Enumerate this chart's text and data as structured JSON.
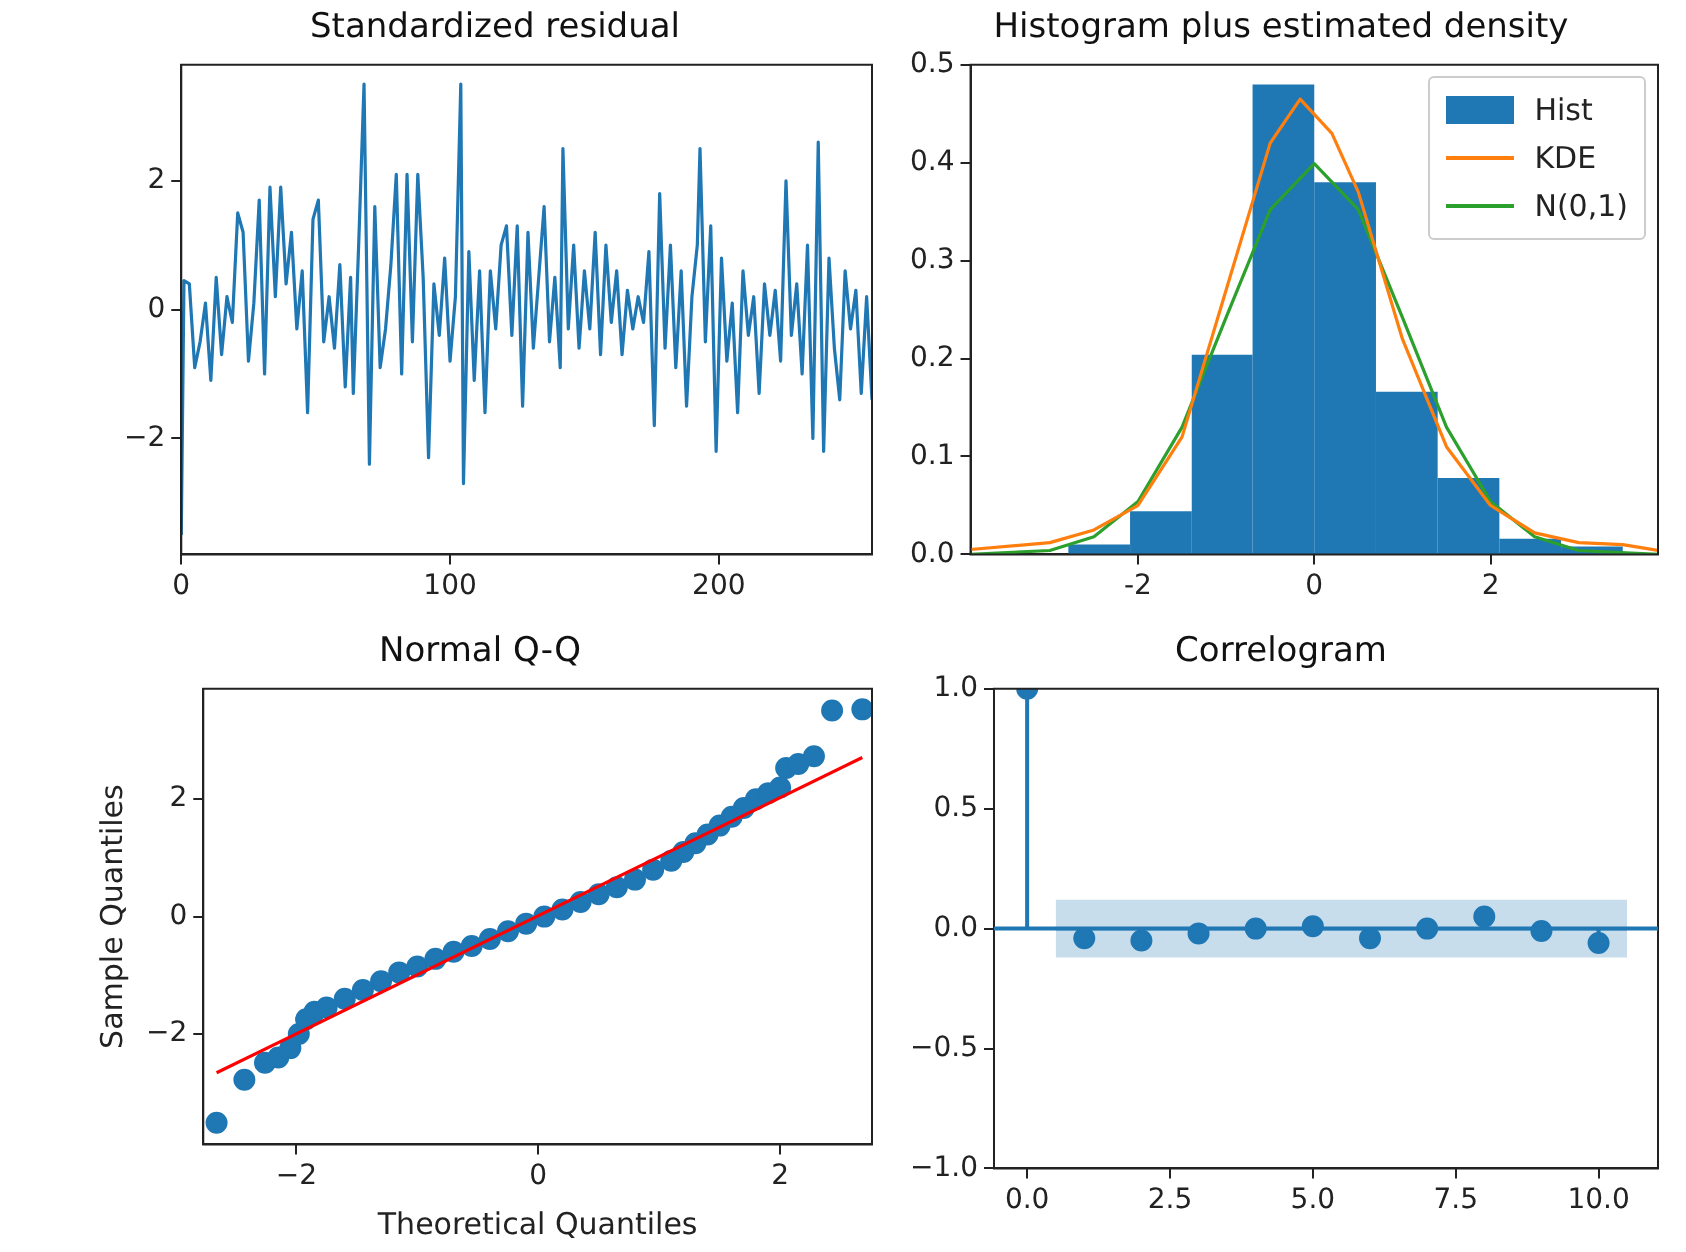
{
  "chart_data": [
    {
      "type": "line",
      "title": "Standardized residual",
      "xlim": [
        0,
        257
      ],
      "xticks": [
        0,
        100,
        200
      ],
      "ylim": [
        -3.8,
        3.8
      ],
      "yticks": [
        {
          "value": -2,
          "label": "−2"
        },
        0,
        2
      ],
      "x": [
        0,
        1,
        3,
        5,
        7,
        9,
        11,
        13,
        15,
        17,
        19,
        21,
        23,
        25,
        27,
        29,
        31,
        33,
        35,
        37,
        39,
        41,
        43,
        45,
        47,
        49,
        51,
        53,
        55,
        57,
        59,
        61,
        63,
        64,
        66,
        68,
        70,
        72,
        74,
        76,
        78,
        80,
        82,
        84,
        86,
        88,
        90,
        92,
        94,
        96,
        98,
        100,
        102,
        104,
        105,
        107,
        109,
        111,
        113,
        115,
        117,
        119,
        121,
        123,
        125,
        127,
        129,
        131,
        133,
        135,
        137,
        139,
        141,
        142,
        144,
        146,
        148,
        150,
        152,
        154,
        156,
        158,
        160,
        162,
        164,
        166,
        168,
        170,
        172,
        174,
        176,
        178,
        180,
        182,
        184,
        186,
        188,
        190,
        192,
        193,
        195,
        197,
        199,
        201,
        203,
        205,
        207,
        209,
        211,
        213,
        215,
        217,
        219,
        221,
        223,
        225,
        227,
        229,
        231,
        233,
        235,
        237,
        239,
        241,
        243,
        245,
        247,
        249,
        251,
        253,
        255,
        257
      ],
      "series": [
        {
          "color": "#1f77b4",
          "values": [
            -3.5,
            0.45,
            0.4,
            -0.9,
            -0.5,
            0.1,
            -1.1,
            0.5,
            -0.7,
            0.2,
            -0.2,
            1.5,
            1.2,
            -0.8,
            0.1,
            1.7,
            -1.0,
            1.9,
            0.2,
            1.9,
            0.4,
            1.2,
            -0.3,
            0.6,
            -1.6,
            1.4,
            1.7,
            -0.5,
            0.2,
            -0.6,
            0.7,
            -1.2,
            0.5,
            -1.3,
            1.0,
            3.5,
            -2.4,
            1.6,
            -0.9,
            -0.3,
            0.7,
            2.1,
            -1.0,
            2.1,
            -0.5,
            2.1,
            0.5,
            -2.3,
            0.4,
            -0.4,
            0.8,
            -0.8,
            0.2,
            3.5,
            -2.7,
            0.9,
            -1.1,
            0.6,
            -1.6,
            0.6,
            -0.3,
            1.0,
            1.3,
            -0.4,
            1.3,
            -1.5,
            1.2,
            -0.6,
            0.5,
            1.6,
            -0.5,
            0.5,
            -0.9,
            2.5,
            -0.3,
            1.0,
            -0.6,
            0.6,
            -0.3,
            1.2,
            -0.7,
            1.0,
            -0.2,
            0.6,
            -0.7,
            0.3,
            -0.3,
            0.2,
            -0.2,
            0.9,
            -1.8,
            1.8,
            -0.6,
            1.0,
            -0.9,
            0.6,
            -1.5,
            0.2,
            1.0,
            2.5,
            -0.5,
            1.3,
            -2.2,
            0.8,
            -0.8,
            0.1,
            -1.6,
            0.6,
            -0.4,
            0.2,
            -1.3,
            0.4,
            -0.4,
            0.3,
            -0.8,
            2.0,
            -0.4,
            0.4,
            -1.0,
            1.0,
            -2.0,
            2.6,
            -2.2,
            0.8,
            -0.6,
            -1.4,
            0.6,
            -0.3,
            0.3,
            -1.3,
            0.2,
            -1.4
          ]
        }
      ]
    },
    {
      "type": "histogram",
      "title": "Histogram plus estimated density",
      "xlim": [
        -3.9,
        3.9
      ],
      "xticks": [
        -2,
        0,
        2
      ],
      "ylim": [
        0,
        0.5
      ],
      "yticks": [
        {
          "value": 0,
          "label": "0.0"
        },
        0.1,
        0.2,
        0.3,
        0.4,
        0.5
      ],
      "legend": "top right",
      "series": [
        {
          "name": "Hist",
          "type": "histogram",
          "color": "#1f77b4",
          "bins": [
            -2.79,
            -2.09,
            -1.39,
            -0.7,
            0,
            0.7,
            1.4,
            2.1,
            2.8,
            3.5
          ],
          "values": [
            0.01,
            0.044,
            0.204,
            0.48,
            0.38,
            0.166,
            0.078,
            0.016,
            0.008
          ]
        },
        {
          "name": "KDE",
          "type": "line",
          "color": "#ff7f0e",
          "x": [
            -3.9,
            -3,
            -2.5,
            -2,
            -1.5,
            -1,
            -0.5,
            -0.16,
            0.2,
            0.5,
            1,
            1.5,
            2,
            2.5,
            3,
            3.5,
            3.9
          ],
          "values": [
            0.005,
            0.012,
            0.025,
            0.05,
            0.12,
            0.27,
            0.42,
            0.465,
            0.43,
            0.37,
            0.22,
            0.11,
            0.05,
            0.022,
            0.012,
            0.01,
            0.004
          ]
        },
        {
          "name": "N(0,1)",
          "type": "line",
          "color": "#2ca02c",
          "x": [
            -3.9,
            -3,
            -2.5,
            -2,
            -1.5,
            -1,
            -0.5,
            0,
            0.5,
            1,
            1.5,
            2,
            2.5,
            3,
            3.9
          ],
          "values": [
            0,
            0.004,
            0.018,
            0.054,
            0.13,
            0.242,
            0.352,
            0.399,
            0.352,
            0.242,
            0.13,
            0.054,
            0.018,
            0.004,
            0
          ]
        }
      ]
    },
    {
      "type": "scatter",
      "title": "Normal Q-Q",
      "xlabel": "Theoretical Quantiles",
      "ylabel": "Sample Quantiles",
      "xlim": [
        -2.77,
        2.76
      ],
      "xticks": [
        {
          "value": -2,
          "label": "−2"
        },
        0,
        2
      ],
      "ylim": [
        -3.88,
        3.88
      ],
      "yticks": [
        {
          "value": -2,
          "label": "−2"
        },
        0,
        2
      ],
      "marker": "circle",
      "series": [
        {
          "color": "#1f77b4",
          "x": [
            -2.66,
            -2.43,
            -2.26,
            -2.15,
            -2.05,
            -1.98,
            -1.92,
            -1.85,
            -1.75,
            -1.6,
            -1.45,
            -1.3,
            -1.15,
            -1.0,
            -0.85,
            -0.7,
            -0.55,
            -0.4,
            -0.25,
            -0.1,
            0.05,
            0.2,
            0.35,
            0.5,
            0.65,
            0.8,
            0.95,
            1.1,
            1.2,
            1.3,
            1.4,
            1.5,
            1.6,
            1.7,
            1.8,
            1.9,
            2.0,
            2.05,
            2.15,
            2.28,
            2.43,
            2.68
          ],
          "values": [
            -3.51,
            -2.78,
            -2.49,
            -2.4,
            -2.24,
            -2.0,
            -1.75,
            -1.62,
            -1.55,
            -1.4,
            -1.25,
            -1.1,
            -0.95,
            -0.85,
            -0.72,
            -0.6,
            -0.5,
            -0.38,
            -0.25,
            -0.12,
            0.0,
            0.12,
            0.25,
            0.38,
            0.5,
            0.63,
            0.8,
            0.95,
            1.1,
            1.25,
            1.4,
            1.55,
            1.7,
            1.85,
            2.0,
            2.1,
            2.2,
            2.53,
            2.6,
            2.73,
            3.51,
            3.53
          ]
        },
        {
          "type": "line",
          "color": "#ff0000",
          "marker": "none",
          "x": [
            -2.66,
            2.68
          ],
          "values": [
            -2.66,
            2.71
          ]
        }
      ]
    },
    {
      "type": "lollipop",
      "title": "Correlogram",
      "xlim": [
        -0.58,
        11.04
      ],
      "xticks": [
        {
          "value": 0,
          "label": "0.0"
        },
        2.5,
        {
          "value": 5,
          "label": "5.0"
        },
        7.5,
        {
          "value": 10,
          "label": "10.0"
        }
      ],
      "ylim": [
        -1,
        1
      ],
      "yticks": [
        {
          "value": -1,
          "label": "−1.0"
        },
        {
          "value": -0.5,
          "label": "−0.5"
        },
        {
          "value": 0,
          "label": "0.0"
        },
        0.5,
        {
          "value": 1,
          "label": "1.0"
        }
      ],
      "marker": "circle",
      "ref_lines": [
        {
          "axis": "y",
          "value": 0,
          "color": "#1f77b4"
        }
      ],
      "series": [
        {
          "type": "line",
          "marker": "none",
          "color": "#1f77b4",
          "x": [
            0.5,
            10.5
          ],
          "values": [
            0,
            0
          ],
          "lower": [
            -0.12,
            -0.12
          ],
          "upper": [
            0.12,
            0.12
          ]
        },
        {
          "color": "#1f77b4",
          "x": [
            0,
            1,
            2,
            3,
            4,
            5,
            6,
            7,
            8,
            9,
            10
          ],
          "values": [
            1,
            -0.04,
            -0.05,
            -0.02,
            0,
            0.01,
            -0.04,
            0,
            0.05,
            -0.01,
            -0.06
          ]
        }
      ]
    }
  ]
}
